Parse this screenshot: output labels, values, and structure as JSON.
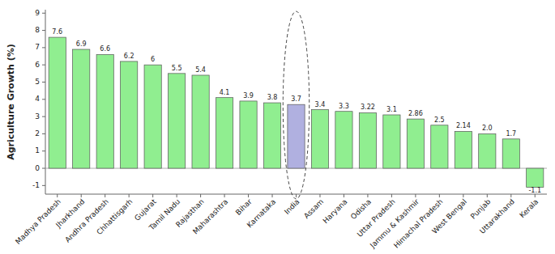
{
  "chart_data": {
    "type": "bar",
    "categories": [
      "Madhya Pradesh",
      "Jharkhand",
      "Andhra Pradesh",
      "Chhattisgarh",
      "Gujarat",
      "Tamil Nadu",
      "Rajasthan",
      "Maharashtra",
      "Bihar",
      "Karnataka",
      "India",
      "Assam",
      "Haryana",
      "Odisha",
      "Uttar Pradesh",
      "Jammu & Kashmir",
      "Himachal Pradesh",
      "West Bengal",
      "Punjab",
      "Uttarakhand",
      "Kerala"
    ],
    "values": [
      7.6,
      6.9,
      6.6,
      6.2,
      6.0,
      5.5,
      5.4,
      4.1,
      3.9,
      3.8,
      3.7,
      3.4,
      3.3,
      3.22,
      3.1,
      2.86,
      2.5,
      2.14,
      2.0,
      1.7,
      -1.1
    ],
    "value_labels": [
      "7.6",
      "6.9",
      "6.6",
      "6.2",
      "6",
      "5.5",
      "5.4",
      "4.1",
      "3.9",
      "3.8",
      "3.7",
      "3.4",
      "3.3",
      "3.22",
      "3.1",
      "2.86",
      "2.5",
      "2.14",
      "2.0",
      "1.7",
      "-1.1"
    ],
    "colors": [
      "#90ee90",
      "#90ee90",
      "#90ee90",
      "#90ee90",
      "#90ee90",
      "#90ee90",
      "#90ee90",
      "#90ee90",
      "#90ee90",
      "#90ee90",
      "#b0b0e0",
      "#90ee90",
      "#90ee90",
      "#90ee90",
      "#90ee90",
      "#90ee90",
      "#90ee90",
      "#90ee90",
      "#90ee90",
      "#90ee90",
      "#90ee90"
    ],
    "ylabel": "Agriculture Growth (%)",
    "ylim": [
      -1.5,
      9.2
    ],
    "yticks": [
      -1,
      0,
      1,
      2,
      3,
      4,
      5,
      6,
      7,
      8,
      9
    ],
    "data_labels": true,
    "grid": false
  }
}
